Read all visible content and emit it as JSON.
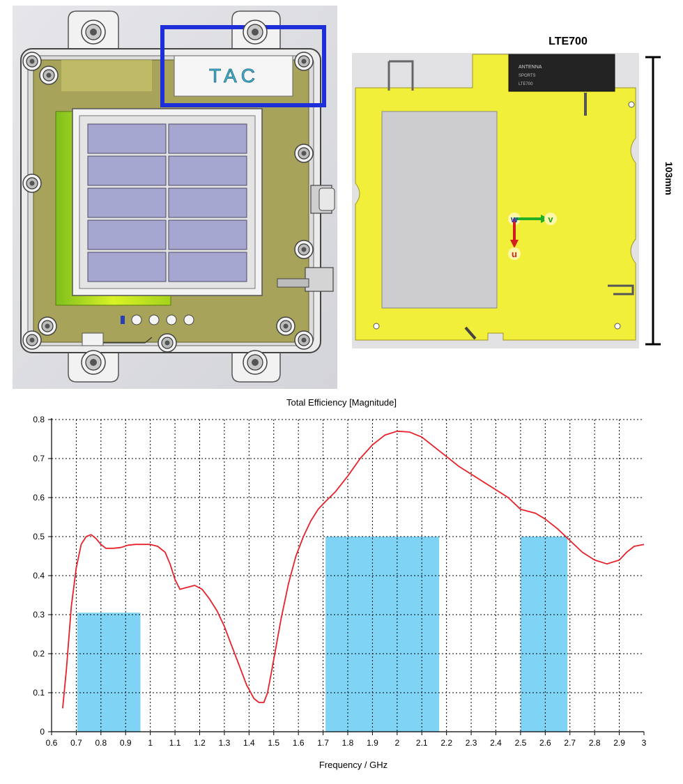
{
  "device": {
    "tag_label": "TAC"
  },
  "pcb": {
    "module_label": "LTE700",
    "dimension_label": "103mm",
    "axes": {
      "u": "u",
      "v": "v",
      "w": "w"
    },
    "chip_text": [
      "ANTENNA",
      "SPORTS",
      "LTE700"
    ]
  },
  "colors": {
    "curve": "#e8202a",
    "band": "#7fd3f5",
    "pcb": "#f2ef3a",
    "highlight_box": "#1e2ed8"
  },
  "chart_data": {
    "type": "line",
    "title": "Total Efficiency [Magnitude]",
    "xlabel": "Frequency / GHz",
    "ylabel": "",
    "xlim": [
      0.6,
      3.0
    ],
    "ylim": [
      0,
      0.8
    ],
    "xticks": [
      "0.6",
      "0.7",
      "0.8",
      "0.9",
      "1",
      "1.1",
      "1.2",
      "1.3",
      "1.4",
      "1.5",
      "1.6",
      "1.7",
      "1.8",
      "1.9",
      "2",
      "2.1",
      "2.2",
      "2.3",
      "2.4",
      "2.5",
      "2.6",
      "2.7",
      "2.8",
      "2.9",
      "3"
    ],
    "yticks": [
      "0",
      "0.1",
      "0.2",
      "0.3",
      "0.4",
      "0.5",
      "0.6",
      "0.7",
      "0.8"
    ],
    "grid": true,
    "series": [
      {
        "x": [
          0.645,
          0.66,
          0.68,
          0.7,
          0.72,
          0.74,
          0.76,
          0.78,
          0.8,
          0.82,
          0.85,
          0.88,
          0.91,
          0.94,
          0.97,
          1.0,
          1.03,
          1.06,
          1.08,
          1.1,
          1.12,
          1.15,
          1.18,
          1.21,
          1.24,
          1.27,
          1.3,
          1.33,
          1.36,
          1.39,
          1.42,
          1.44,
          1.46,
          1.475,
          1.49,
          1.51,
          1.53,
          1.56,
          1.59,
          1.62,
          1.65,
          1.68,
          1.71,
          1.75,
          1.8,
          1.85,
          1.9,
          1.95,
          2.0,
          2.05,
          2.1,
          2.15,
          2.2,
          2.25,
          2.3,
          2.35,
          2.4,
          2.45,
          2.5,
          2.53,
          2.56,
          2.6,
          2.65,
          2.7,
          2.75,
          2.8,
          2.85,
          2.9,
          2.93,
          2.96,
          3.0
        ],
        "y": [
          0.06,
          0.16,
          0.32,
          0.42,
          0.48,
          0.5,
          0.505,
          0.495,
          0.48,
          0.47,
          0.47,
          0.472,
          0.478,
          0.48,
          0.48,
          0.48,
          0.475,
          0.46,
          0.43,
          0.39,
          0.365,
          0.37,
          0.375,
          0.365,
          0.34,
          0.31,
          0.27,
          0.22,
          0.17,
          0.12,
          0.085,
          0.075,
          0.075,
          0.1,
          0.15,
          0.22,
          0.29,
          0.38,
          0.45,
          0.5,
          0.54,
          0.57,
          0.59,
          0.615,
          0.655,
          0.7,
          0.735,
          0.76,
          0.77,
          0.768,
          0.755,
          0.73,
          0.705,
          0.68,
          0.66,
          0.64,
          0.62,
          0.6,
          0.57,
          0.565,
          0.56,
          0.545,
          0.52,
          0.49,
          0.46,
          0.44,
          0.43,
          0.44,
          0.46,
          0.475,
          0.48
        ]
      }
    ],
    "bands": [
      {
        "x_start": 0.704,
        "x_end": 0.96,
        "height": 0.305
      },
      {
        "x_start": 1.71,
        "x_end": 2.17,
        "height": 0.5
      },
      {
        "x_start": 2.5,
        "x_end": 2.69,
        "height": 0.5
      }
    ]
  }
}
